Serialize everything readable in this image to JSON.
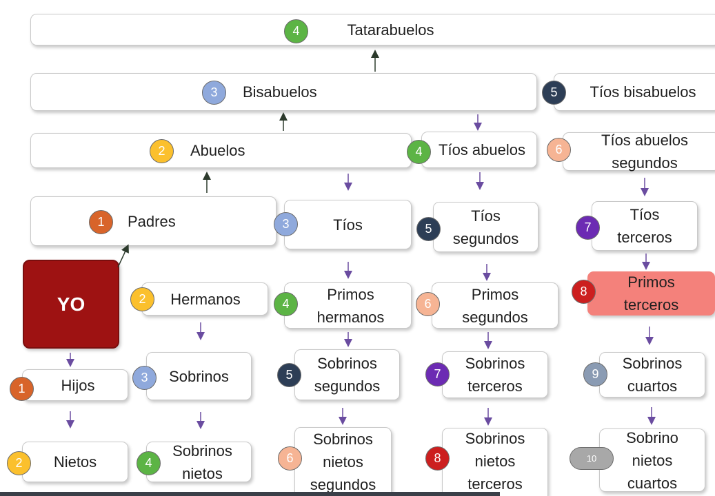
{
  "colors": {
    "orange": "#d8642a",
    "yellow": "#fbc02d",
    "light_blue": "#8fa9dc",
    "green": "#5cb445",
    "navy": "#2d3e56",
    "peach": "#f6b494",
    "purple": "#6c2bb3",
    "red": "#cc1f1f",
    "gray_blue": "#8a9bb3",
    "gray": "#a8a8a8",
    "yo_fill": "#9e1212",
    "highlight_fill": "#f4817b"
  },
  "nodes": {
    "tatarabuelos": {
      "label": "Tatarabuelos",
      "degree": "4"
    },
    "bisabuelos": {
      "label": "Bisabuelos",
      "degree": "3"
    },
    "tios_bisabuelos": {
      "label": "Tíos bisabuelos",
      "degree": "5"
    },
    "abuelos": {
      "label": "Abuelos",
      "degree": "2"
    },
    "tios_abuelos": {
      "label": "Tíos abuelos",
      "degree": "4"
    },
    "tios_abuelos_segundos": {
      "label": "Tíos abuelos\nsegundos",
      "degree": "6"
    },
    "padres": {
      "label": "Padres",
      "degree": "1"
    },
    "tios": {
      "label": "Tíos",
      "degree": "3"
    },
    "tios_segundos": {
      "label": "Tíos\nsegundos",
      "degree": "5"
    },
    "tios_terceros": {
      "label": "Tíos\nterceros",
      "degree": "7"
    },
    "yo": {
      "label": "YO"
    },
    "hermanos": {
      "label": "Hermanos",
      "degree": "2"
    },
    "primos_hermanos": {
      "label": "Primos\nhermanos",
      "degree": "4"
    },
    "primos_segundos": {
      "label": "Primos\nsegundos",
      "degree": "6"
    },
    "primos_terceros": {
      "label": "Primos\nterceros",
      "degree": "8"
    },
    "hijos": {
      "label": "Hijos",
      "degree": "1"
    },
    "sobrinos": {
      "label": "Sobrinos",
      "degree": "3"
    },
    "sobrinos_segundos": {
      "label": "Sobrinos\nsegundos",
      "degree": "5"
    },
    "sobrinos_terceros": {
      "label": "Sobrinos\nterceros",
      "degree": "7"
    },
    "sobrinos_cuartos": {
      "label": "Sobrinos\ncuartos",
      "degree": "9"
    },
    "nietos": {
      "label": "Nietos",
      "degree": "2"
    },
    "sobrinos_nietos": {
      "label": "Sobrinos\nnietos",
      "degree": "4"
    },
    "sobrinos_nietos_segundos": {
      "label": "Sobrinos\nnietos\nsegundos",
      "degree": "6"
    },
    "sobrinos_nietos_terceros": {
      "label": "Sobrinos\nnietos\nterceros",
      "degree": "8"
    },
    "sobrino_nietos_cuartos": {
      "label": "Sobrino\nnietos\ncuartos",
      "degree": "10"
    }
  }
}
